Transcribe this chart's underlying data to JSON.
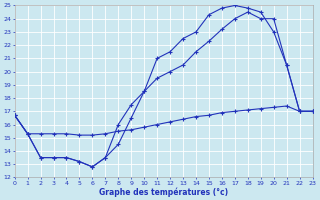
{
  "xlabel": "Graphe des températures (°c)",
  "background_color": "#cce8f0",
  "line_color": "#2233bb",
  "grid_color": "#b8d8e8",
  "ylim": [
    12,
    25
  ],
  "xlim": [
    0,
    23
  ],
  "yticks": [
    12,
    13,
    14,
    15,
    16,
    17,
    18,
    19,
    20,
    21,
    22,
    23,
    24,
    25
  ],
  "xticks": [
    0,
    1,
    2,
    3,
    4,
    5,
    6,
    7,
    8,
    9,
    10,
    11,
    12,
    13,
    14,
    15,
    16,
    17,
    18,
    19,
    20,
    21,
    22,
    23
  ],
  "line1_x": [
    0,
    1,
    2,
    3,
    4,
    5,
    6,
    7,
    8,
    9,
    10,
    11,
    12,
    13,
    14,
    15,
    16,
    17,
    18,
    19,
    20,
    21,
    22,
    23
  ],
  "line1_y": [
    16.7,
    15.3,
    15.3,
    15.3,
    15.3,
    15.2,
    15.2,
    15.3,
    15.5,
    15.6,
    15.8,
    16.0,
    16.2,
    16.4,
    16.6,
    16.7,
    16.9,
    17.0,
    17.1,
    17.2,
    17.3,
    17.4,
    17.0,
    17.0
  ],
  "line2_x": [
    0,
    1,
    2,
    3,
    4,
    5,
    6,
    7,
    8,
    9,
    10,
    11,
    12,
    13,
    14,
    15,
    16,
    17,
    18,
    19,
    20,
    21,
    22,
    23
  ],
  "line2_y": [
    16.7,
    15.3,
    13.5,
    13.5,
    13.5,
    13.2,
    12.8,
    13.5,
    16.0,
    17.5,
    18.5,
    19.5,
    20.0,
    20.5,
    21.5,
    22.3,
    23.2,
    24.0,
    24.5,
    24.0,
    24.0,
    20.5,
    17.0,
    17.0
  ],
  "line3_x": [
    0,
    1,
    2,
    3,
    4,
    5,
    6,
    7,
    8,
    9,
    10,
    11,
    12,
    13,
    14,
    15,
    16,
    17,
    18,
    19,
    20,
    21,
    22,
    23
  ],
  "line3_y": [
    16.7,
    15.3,
    13.5,
    13.5,
    13.5,
    13.2,
    12.8,
    13.5,
    14.5,
    16.5,
    18.5,
    21.0,
    21.5,
    22.5,
    23.0,
    24.3,
    24.8,
    25.0,
    24.8,
    24.5,
    23.0,
    20.5,
    17.0,
    17.0
  ]
}
